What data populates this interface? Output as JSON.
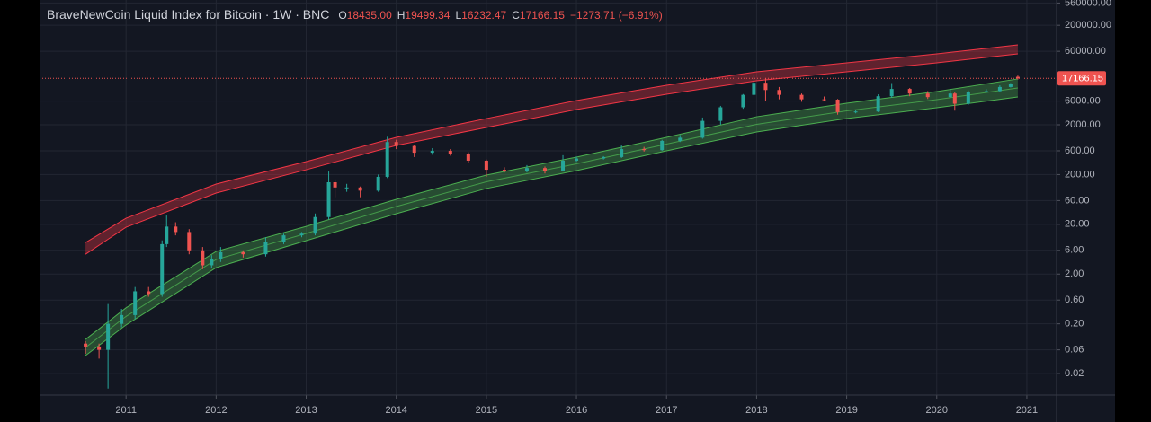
{
  "chart_data": {
    "type": "candlestick",
    "title": "BraveNewCoin Liquid Index for Bitcoin · 1W · BNC",
    "header_fields": [
      {
        "label": "O",
        "value": "18435.00"
      },
      {
        "label": "H",
        "value": "19499.34"
      },
      {
        "label": "L",
        "value": "16232.47"
      },
      {
        "label": "C",
        "value": "17166.15"
      }
    ],
    "change": "−1273.71 (−6.91%)",
    "last_price_label": "17166.15",
    "log_scale": true,
    "grid": true,
    "up_color": "#26a69a",
    "down_color": "#ef5350",
    "xlim": [
      2010.04,
      2021.33
    ],
    "xticks": [
      2011,
      2012,
      2013,
      2014,
      2015,
      2016,
      2017,
      2018,
      2019,
      2020,
      2021
    ],
    "ylim": [
      0.0074,
      645000
    ],
    "yticks": [
      {
        "value": 560000,
        "label": "560000.00"
      },
      {
        "value": 200000,
        "label": "200000.00"
      },
      {
        "value": 60000,
        "label": "60000.00"
      },
      {
        "value": 6000,
        "label": "6000.00"
      },
      {
        "value": 2000,
        "label": "2000.00"
      },
      {
        "value": 600,
        "label": "600.00"
      },
      {
        "value": 200,
        "label": "200.00"
      },
      {
        "value": 60,
        "label": "60.00"
      },
      {
        "value": 20,
        "label": "20.00"
      },
      {
        "value": 6,
        "label": "6.00"
      },
      {
        "value": 2,
        "label": "2.00"
      },
      {
        "value": 0.6,
        "label": "0.60"
      },
      {
        "value": 0.2,
        "label": "0.20"
      },
      0.06,
      0.02
    ],
    "x": [
      2010.55,
      2010.7,
      2010.8,
      2010.95,
      2011.1,
      2011.25,
      2011.4,
      2011.45,
      2011.55,
      2011.7,
      2011.85,
      2011.95,
      2012.05,
      2012.3,
      2012.55,
      2012.75,
      2012.95,
      2013.1,
      2013.25,
      2013.32,
      2013.45,
      2013.6,
      2013.8,
      2013.9,
      2014.0,
      2014.2,
      2014.4,
      2014.6,
      2014.8,
      2015.0,
      2015.2,
      2015.45,
      2015.65,
      2015.85,
      2016.0,
      2016.3,
      2016.5,
      2016.75,
      2016.95,
      2017.15,
      2017.4,
      2017.6,
      2017.85,
      2017.97,
      2018.1,
      2018.25,
      2018.5,
      2018.75,
      2018.9,
      2019.1,
      2019.35,
      2019.5,
      2019.7,
      2019.9,
      2020.15,
      2020.2,
      2020.35,
      2020.55,
      2020.7,
      2020.82,
      2020.9
    ],
    "open": [
      0.08,
      0.07,
      0.06,
      0.2,
      0.3,
      0.9,
      0.8,
      8,
      18,
      14,
      6,
      3,
      4,
      5.5,
      5,
      9,
      12,
      13,
      28,
      140,
      110,
      110,
      95,
      180,
      900,
      750,
      550,
      600,
      520,
      380,
      250,
      240,
      270,
      240,
      380,
      420,
      450,
      650,
      620,
      950,
      1100,
      2400,
      4500,
      8000,
      14000,
      10000,
      8000,
      6500,
      6400,
      3600,
      3700,
      7500,
      10500,
      8500,
      7200,
      8500,
      5300,
      9000,
      9500,
      11500,
      18435
    ],
    "high": [
      0.09,
      0.08,
      0.5,
      0.4,
      1.1,
      1.1,
      9.5,
      30,
      22,
      16,
      7,
      4.8,
      7,
      6,
      11,
      13,
      14,
      33,
      230,
      160,
      130,
      115,
      200,
      1150,
      1000,
      800,
      680,
      650,
      560,
      400,
      280,
      310,
      290,
      490,
      460,
      470,
      770,
      720,
      1000,
      1250,
      2800,
      4800,
      8300,
      19800,
      17000,
      11500,
      8500,
      7400,
      6600,
      4000,
      8200,
      13800,
      11000,
      9500,
      10500,
      9200,
      9800,
      10400,
      12400,
      13800,
      19499.34
    ],
    "low": [
      0.05,
      0.04,
      0.01,
      0.17,
      0.25,
      0.7,
      0.7,
      7,
      12,
      5,
      2.5,
      2.6,
      3.5,
      4.3,
      4.5,
      8,
      11,
      12,
      25,
      70,
      90,
      70,
      90,
      170,
      650,
      450,
      500,
      480,
      340,
      180,
      220,
      220,
      210,
      230,
      360,
      400,
      430,
      580,
      600,
      900,
      1050,
      2000,
      4200,
      7800,
      6000,
      6500,
      5800,
      6100,
      3200,
      3400,
      3600,
      7000,
      7500,
      6600,
      7000,
      3850,
      5000,
      8800,
      9100,
      11200,
      16232.47
    ],
    "close": [
      0.07,
      0.06,
      0.2,
      0.3,
      0.9,
      0.8,
      8,
      18,
      14,
      6,
      3,
      4,
      5.5,
      5,
      9,
      12,
      13,
      28,
      140,
      110,
      110,
      95,
      180,
      900,
      750,
      550,
      600,
      520,
      380,
      250,
      240,
      270,
      240,
      380,
      420,
      450,
      650,
      620,
      950,
      1100,
      2400,
      4500,
      8000,
      14000,
      10000,
      8000,
      6500,
      6400,
      3600,
      3700,
      7500,
      10500,
      8500,
      7200,
      8500,
      5300,
      9000,
      9500,
      11500,
      13500,
      17166.15
    ],
    "bands": [
      {
        "color": "#f23645",
        "x": [
          2010.55,
          2011,
          2012,
          2013,
          2014,
          2015,
          2016,
          2017,
          2018,
          2019,
          2020,
          2020.9
        ],
        "upper": [
          8.6,
          26.5,
          129,
          364,
          1117,
          2670,
          6140,
          12450,
          23200,
          35200,
          53300,
          80800
        ],
        "lower": [
          5.0,
          17.5,
          85,
          250,
          770,
          1766,
          4050,
          8220,
          15300,
          23200,
          35200,
          53300
        ]
      },
      {
        "color": "#4caf50",
        "x": [
          2010.55,
          2011,
          2012,
          2013,
          2014,
          2015,
          2016,
          2017,
          2018,
          2019,
          2020,
          2020.9
        ],
        "upper": [
          0.097,
          0.42,
          5.7,
          18.2,
          63.5,
          195,
          448,
          1117,
          2900,
          5420,
          9310,
          16700
        ],
        "middle": [
          0.0668,
          0.282,
          3.92,
          13.1,
          45.6,
          143,
          328,
          819,
          2041,
          3804,
          6400,
          11010
        ],
        "lower": [
          0.046,
          0.19,
          2.7,
          9.4,
          32.7,
          105,
          240,
          600,
          1436,
          2670,
          4400,
          7260
        ]
      }
    ]
  }
}
